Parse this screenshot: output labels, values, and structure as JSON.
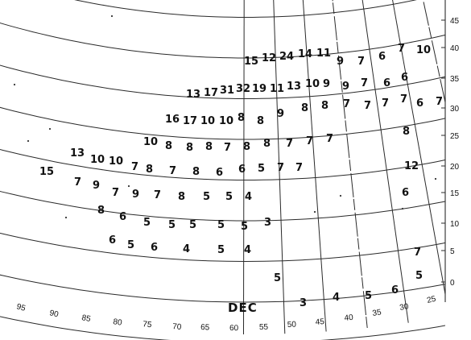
{
  "month_label": "DEC",
  "right_ticks": [
    "45",
    "40",
    "35",
    "30",
    "25",
    "20",
    "15",
    "10",
    "5",
    "0"
  ],
  "bottom_ticks": [
    "95",
    "90",
    "85",
    "80",
    "75",
    "70",
    "65",
    "60",
    "55",
    "50",
    "45",
    "40",
    "35",
    "30",
    "25"
  ],
  "values": [
    [
      "15",
      "12",
      "24",
      "14",
      "11",
      "9",
      "7",
      "6",
      "7"
    ],
    [
      "10"
    ],
    [
      "13",
      "17",
      "31",
      "32",
      "19",
      "11",
      "13",
      "10",
      "9",
      "9",
      "7",
      "6",
      "6"
    ],
    [
      "16",
      "17",
      "10",
      "10",
      "8",
      "8",
      "9",
      "8",
      "8",
      "7",
      "7",
      "7",
      "7",
      "6",
      "7"
    ],
    [
      "10",
      "8",
      "8",
      "8",
      "7",
      "8",
      "8",
      "7",
      "7",
      "7",
      "8"
    ],
    [
      "13",
      "10",
      "10",
      "7",
      "8",
      "7",
      "8",
      "6",
      "6",
      "5",
      "7",
      "7",
      "12"
    ],
    [
      "15",
      "7",
      "9",
      "7",
      "9",
      "7",
      "8",
      "5",
      "5",
      "4",
      "6"
    ],
    [
      "8",
      "6",
      "5",
      "5",
      "5",
      "5",
      "5",
      "3"
    ],
    [
      "6",
      "5",
      "6",
      "4",
      "5",
      "4",
      "7"
    ],
    [
      "5",
      "5"
    ],
    [
      "3",
      "4",
      "5",
      "6"
    ]
  ]
}
